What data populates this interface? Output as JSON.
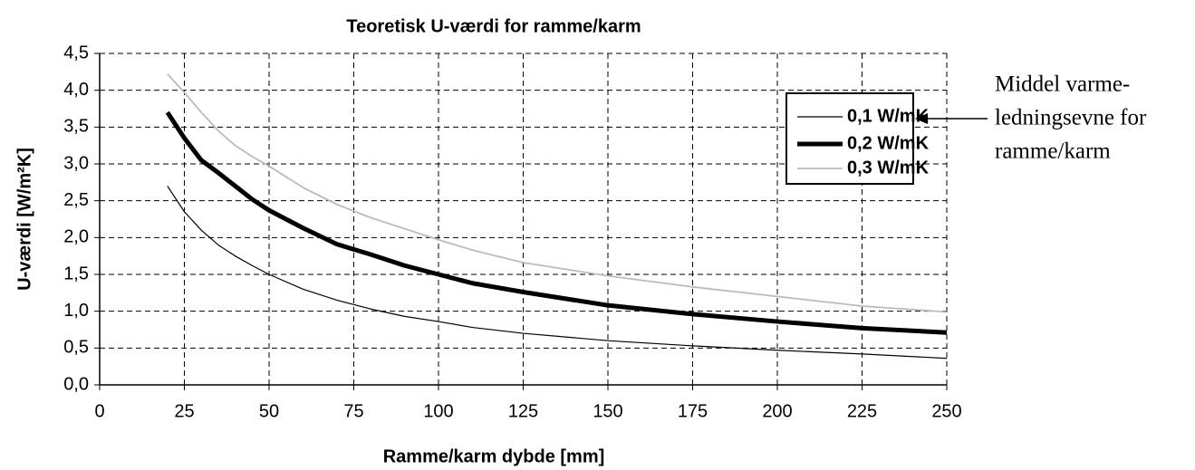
{
  "chart_data": {
    "type": "line",
    "title": "Teoretisk U-værdi for ramme/karm",
    "xlabel": "Ramme/karm dybde [mm]",
    "ylabel": "U-værdi [W/m²K]",
    "annotation": [
      "Middel varme-",
      "ledningsevne for",
      "ramme/karm"
    ],
    "x": [
      20,
      25,
      30,
      35,
      40,
      45,
      50,
      60,
      70,
      80,
      90,
      100,
      110,
      125,
      150,
      175,
      200,
      225,
      250
    ],
    "series": [
      {
        "name": "0,1 W/mK",
        "color": "#000000",
        "line_width": 1.2,
        "values": [
          2.7,
          2.35,
          2.1,
          1.9,
          1.75,
          1.62,
          1.5,
          1.3,
          1.15,
          1.03,
          0.93,
          0.86,
          0.78,
          0.7,
          0.6,
          0.53,
          0.47,
          0.42,
          0.36
        ]
      },
      {
        "name": "0,2 W/mK",
        "color": "#000000",
        "line_width": 5,
        "values": [
          3.7,
          3.35,
          3.05,
          2.88,
          2.7,
          2.52,
          2.37,
          2.13,
          1.91,
          1.77,
          1.62,
          1.5,
          1.38,
          1.26,
          1.08,
          0.96,
          0.86,
          0.77,
          0.71
        ]
      },
      {
        "name": "0,3 W/mK",
        "color": "#bbbbbb",
        "line_width": 1.8,
        "values": [
          4.22,
          3.97,
          3.7,
          3.45,
          3.25,
          3.1,
          2.97,
          2.68,
          2.45,
          2.27,
          2.12,
          1.97,
          1.83,
          1.66,
          1.48,
          1.33,
          1.2,
          1.07,
          0.99
        ]
      }
    ],
    "xlim": [
      0,
      250
    ],
    "xticks": [
      0,
      25,
      50,
      75,
      100,
      125,
      150,
      175,
      200,
      225,
      250
    ],
    "ylim": [
      0,
      4.5
    ],
    "yticks": [
      {
        "value": 0,
        "label": "0,0"
      },
      {
        "value": 0.5,
        "label": "0,5"
      },
      {
        "value": 1,
        "label": "1,0"
      },
      {
        "value": 1.5,
        "label": "1,5"
      },
      {
        "value": 2,
        "label": "2,0"
      },
      {
        "value": 2.5,
        "label": "2,5"
      },
      {
        "value": 3,
        "label": "3,0"
      },
      {
        "value": 3.5,
        "label": "3,5"
      },
      {
        "value": 4,
        "label": "4,0"
      },
      {
        "value": 4.5,
        "label": "4,5"
      }
    ],
    "grid": true
  }
}
